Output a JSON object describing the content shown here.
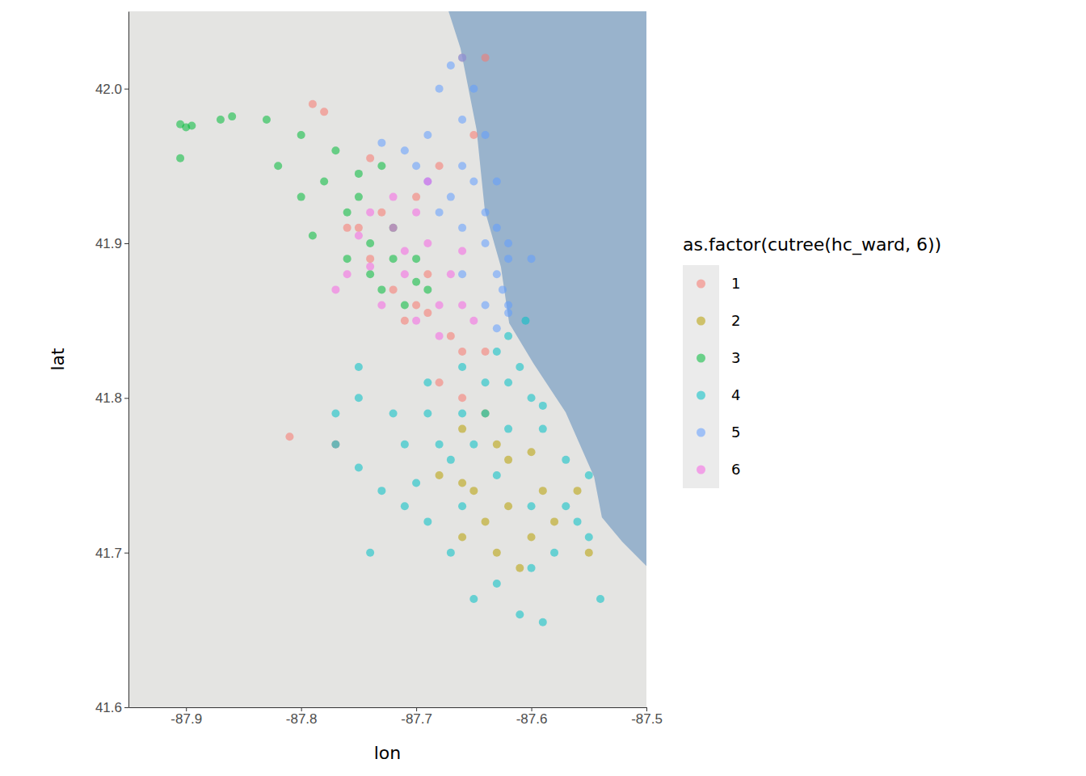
{
  "chart_data": {
    "type": "scatter",
    "x_label": "lon",
    "y_label": "lat",
    "legend_title": "as.factor(cutree(hc_ward, 6))",
    "legend": "right",
    "grid": false,
    "xlim": [
      -87.95,
      -87.5
    ],
    "ylim": [
      41.6,
      42.05
    ],
    "xticks": [
      -87.9,
      -87.8,
      -87.7,
      -87.6,
      -87.5
    ],
    "yticks": [
      41.6,
      41.7,
      41.8,
      41.9,
      {
        "value": 42,
        "label": "42.0"
      }
    ],
    "series": [
      {
        "name": "1",
        "color": "#F8766D",
        "x": [
          -87.66,
          -87.64,
          -87.79,
          -87.78,
          -87.73,
          -87.76,
          -87.74,
          -87.72,
          -87.7,
          -87.71,
          -87.69,
          -87.67,
          -87.66,
          -87.64,
          -87.68,
          -87.66,
          -87.81,
          -87.77,
          -87.75,
          -87.7,
          -87.68,
          -87.65,
          -87.74,
          -87.69
        ],
        "values": [
          42.02,
          42.02,
          41.99,
          41.985,
          41.92,
          41.91,
          41.89,
          41.87,
          41.86,
          41.85,
          41.855,
          41.84,
          41.83,
          41.83,
          41.81,
          41.8,
          41.775,
          41.77,
          41.91,
          41.93,
          41.95,
          41.97,
          41.955,
          41.88
        ]
      },
      {
        "name": "2",
        "color": "#B79F00",
        "x": [
          -87.66,
          -87.63,
          -87.62,
          -87.6,
          -87.65,
          -87.62,
          -87.59,
          -87.66,
          -87.63,
          -87.6,
          -87.56,
          -87.55,
          -87.68,
          -87.64,
          -87.61,
          -87.66,
          -87.58,
          -87.64
        ],
        "values": [
          41.78,
          41.77,
          41.76,
          41.765,
          41.74,
          41.73,
          41.74,
          41.71,
          41.7,
          41.71,
          41.74,
          41.7,
          41.75,
          41.79,
          41.69,
          41.745,
          41.72,
          41.72
        ]
      },
      {
        "name": "3",
        "color": "#00BA38",
        "x": [
          -87.905,
          -87.9,
          -87.895,
          -87.905,
          -87.87,
          -87.86,
          -87.83,
          -87.8,
          -87.77,
          -87.75,
          -87.78,
          -87.8,
          -87.76,
          -87.74,
          -87.72,
          -87.74,
          -87.7,
          -87.71,
          -87.73,
          -87.69,
          -87.75,
          -87.72,
          -87.79,
          -87.82,
          -87.73,
          -87.7,
          -87.76
        ],
        "values": [
          41.977,
          41.975,
          41.976,
          41.955,
          41.98,
          41.982,
          41.98,
          41.97,
          41.96,
          41.945,
          41.94,
          41.93,
          41.92,
          41.9,
          41.89,
          41.88,
          41.875,
          41.86,
          41.87,
          41.87,
          41.93,
          41.91,
          41.905,
          41.95,
          41.95,
          41.89,
          41.89
        ]
      },
      {
        "name": "4",
        "color": "#00BFC4",
        "x": [
          -87.63,
          -87.61,
          -87.62,
          -87.6,
          -87.64,
          -87.66,
          -87.69,
          -87.72,
          -87.75,
          -87.77,
          -87.75,
          -87.73,
          -87.7,
          -87.68,
          -87.65,
          -87.62,
          -87.59,
          -87.57,
          -87.55,
          -87.56,
          -87.58,
          -87.6,
          -87.63,
          -87.65,
          -87.61,
          -87.59,
          -87.54,
          -87.67,
          -87.69,
          -87.71,
          -87.74,
          -87.66,
          -87.63,
          -87.6,
          -87.57,
          -87.67,
          -87.64,
          -87.71,
          -87.75,
          -87.69,
          -87.66,
          -87.62,
          -87.605,
          -87.59,
          -87.55,
          -87.77
        ],
        "values": [
          41.83,
          41.82,
          41.81,
          41.8,
          41.81,
          41.79,
          41.79,
          41.79,
          41.8,
          41.79,
          41.755,
          41.74,
          41.745,
          41.77,
          41.77,
          41.78,
          41.78,
          41.76,
          41.75,
          41.72,
          41.7,
          41.69,
          41.68,
          41.67,
          41.66,
          41.655,
          41.67,
          41.7,
          41.72,
          41.73,
          41.7,
          41.73,
          41.75,
          41.73,
          41.73,
          41.76,
          41.79,
          41.77,
          41.82,
          41.81,
          41.82,
          41.84,
          41.85,
          41.795,
          41.71,
          41.77
        ]
      },
      {
        "name": "5",
        "color": "#619CFF",
        "x": [
          -87.66,
          -87.67,
          -87.65,
          -87.68,
          -87.66,
          -87.64,
          -87.69,
          -87.71,
          -87.73,
          -87.66,
          -87.65,
          -87.63,
          -87.64,
          -87.67,
          -87.69,
          -87.63,
          -87.62,
          -87.64,
          -87.62,
          -87.63,
          -87.625,
          -87.62,
          -87.64,
          -87.66,
          -87.6,
          -87.66,
          -87.68,
          -87.62,
          -87.63,
          -87.7
        ],
        "values": [
          42.02,
          42.015,
          42.0,
          42.0,
          41.98,
          41.97,
          41.97,
          41.96,
          41.965,
          41.95,
          41.94,
          41.94,
          41.92,
          41.93,
          41.94,
          41.91,
          41.9,
          41.9,
          41.89,
          41.88,
          41.87,
          41.86,
          41.86,
          41.88,
          41.89,
          41.91,
          41.92,
          41.855,
          41.845,
          41.95
        ]
      },
      {
        "name": "6",
        "color": "#F564E3",
        "x": [
          -87.72,
          -87.7,
          -87.69,
          -87.71,
          -87.74,
          -87.76,
          -87.73,
          -87.7,
          -87.68,
          -87.66,
          -87.67,
          -87.72,
          -87.75,
          -87.69,
          -87.66,
          -87.68,
          -87.71,
          -87.77,
          -87.74,
          -87.65
        ],
        "values": [
          41.93,
          41.92,
          41.9,
          41.895,
          41.885,
          41.88,
          41.86,
          41.85,
          41.86,
          41.86,
          41.88,
          41.91,
          41.905,
          41.94,
          41.895,
          41.84,
          41.88,
          41.87,
          41.92,
          41.85
        ]
      }
    ]
  }
}
